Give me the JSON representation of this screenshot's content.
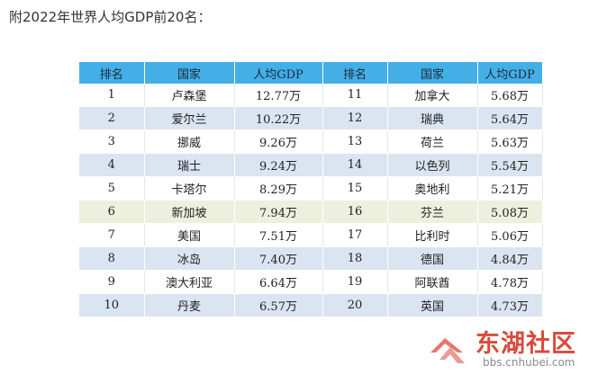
{
  "intro_text": "附2022年世界人均GDP前20名：",
  "table": {
    "headers": [
      "排名",
      "国家",
      "人均GDP",
      "排名",
      "国家",
      "人均GDP"
    ],
    "rows": [
      [
        "1",
        "卢森堡",
        "12.77万",
        "11",
        "加拿大",
        "5.68万"
      ],
      [
        "2",
        "爱尔兰",
        "10.22万",
        "12",
        "瑞典",
        "5.64万"
      ],
      [
        "3",
        "挪威",
        "9.26万",
        "13",
        "荷兰",
        "5.63万"
      ],
      [
        "4",
        "瑞士",
        "9.24万",
        "14",
        "以色列",
        "5.54万"
      ],
      [
        "5",
        "卡塔尔",
        "8.29万",
        "15",
        "奥地利",
        "5.21万"
      ],
      [
        "6",
        "新加坡",
        "7.94万",
        "16",
        "芬兰",
        "5.08万"
      ],
      [
        "7",
        "美国",
        "7.51万",
        "17",
        "比利时",
        "5.06万"
      ],
      [
        "8",
        "冰岛",
        "7.40万",
        "18",
        "德国",
        "4.84万"
      ],
      [
        "9",
        "澳大利亚",
        "6.64万",
        "19",
        "阿联酋",
        "4.78万"
      ],
      [
        "10",
        "丹麦",
        "6.57万",
        "20",
        "英国",
        "4.73万"
      ]
    ]
  },
  "watermark": {
    "name": "东湖社区",
    "url": "bbs.cnhubei.com"
  },
  "colors": {
    "header_bg": "#44aee6",
    "row_alt_bg": "#dbe4f1",
    "row_highlight_bg": "#ecf0dd",
    "watermark_red": "#d94a3a"
  }
}
